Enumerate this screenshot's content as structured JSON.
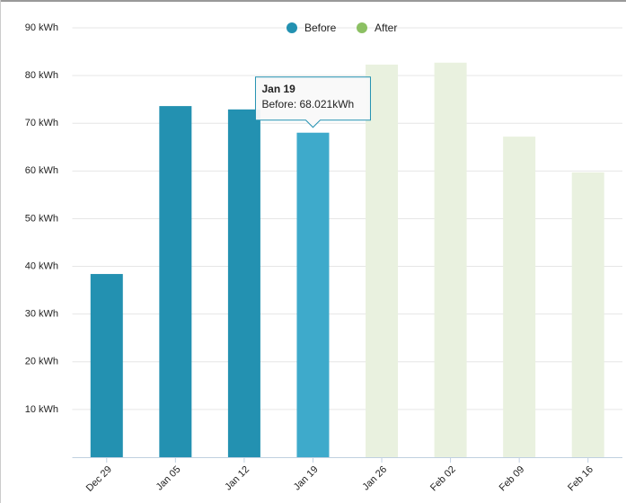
{
  "chart_data": {
    "type": "bar",
    "categories": [
      "Dec 29",
      "Jan 05",
      "Jan 12",
      "Jan 19",
      "Jan 26",
      "Feb 02",
      "Feb 09",
      "Feb 16"
    ],
    "series": [
      {
        "name": "Before",
        "color": "#2391b1",
        "bar_color": "#2391b1",
        "hover_color": "#3eaacb",
        "values": [
          38.4,
          73.6,
          72.9,
          68.021,
          null,
          null,
          null,
          null
        ]
      },
      {
        "name": "After",
        "color": "#8cc063",
        "bar_color": "#e9f1df",
        "hover_color": "#e9f1df",
        "values": [
          null,
          null,
          null,
          null,
          82.3,
          82.7,
          67.2,
          59.7
        ]
      }
    ],
    "ylim": [
      0,
      90
    ],
    "yticks": [
      {
        "value": 10,
        "label": "10 kWh"
      },
      {
        "value": 20,
        "label": "20 kWh"
      },
      {
        "value": 30,
        "label": "30 kWh"
      },
      {
        "value": 40,
        "label": "40 kWh"
      },
      {
        "value": 50,
        "label": "50 kWh"
      },
      {
        "value": 60,
        "label": "60 kWh"
      },
      {
        "value": 70,
        "label": "70 kWh"
      },
      {
        "value": 80,
        "label": "80 kWh"
      },
      {
        "value": 90,
        "label": "90 kWh"
      }
    ],
    "grid": true,
    "tooltip": {
      "title": "Jan 19",
      "text": "Before: 68.021kWh"
    }
  }
}
